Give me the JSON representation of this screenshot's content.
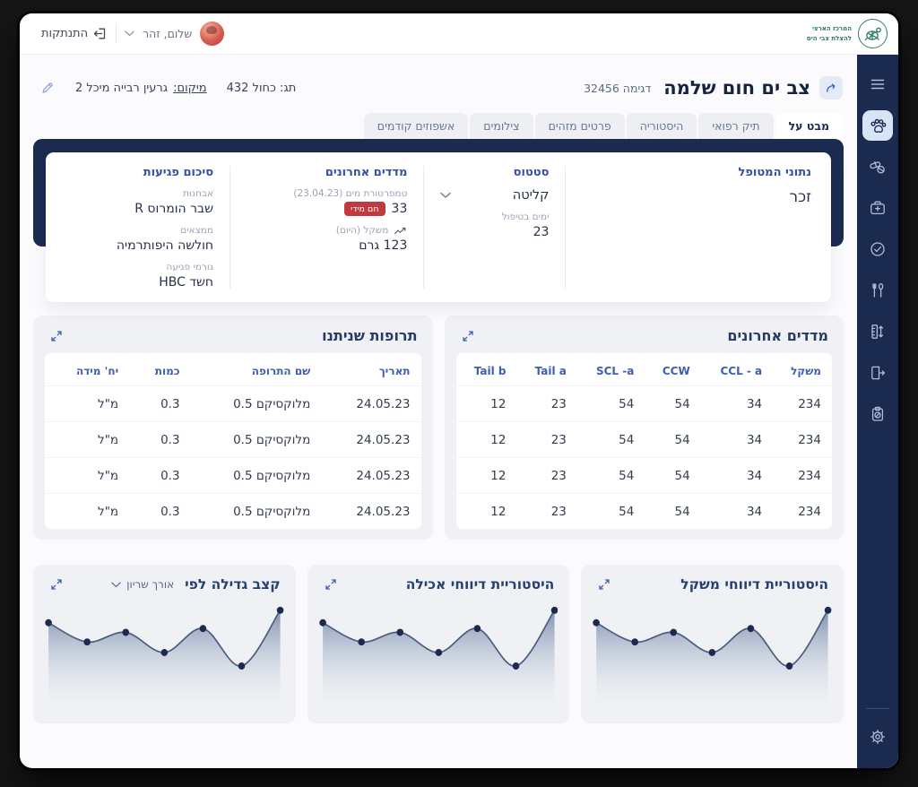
{
  "topbar": {
    "logout_label": "התנתקות",
    "greeting": "שלום, זהר",
    "logo_line1": "המרכז הארצי",
    "logo_line2": "להצלת צבי הים"
  },
  "header": {
    "title": "צב ים חום שלמה",
    "sample_label": "דגימה 32456",
    "tag_label": "תג: כחול 432",
    "location_label": "מיקום:",
    "location_value": "גרעין רבייה מיכל 2"
  },
  "tabs": [
    {
      "label": "מבט על",
      "active": true
    },
    {
      "label": "תיק רפואי",
      "active": false
    },
    {
      "label": "היסטוריה",
      "active": false
    },
    {
      "label": "פרטים מזהים",
      "active": false
    },
    {
      "label": "צילומים",
      "active": false
    },
    {
      "label": "אשפוזים קודמים",
      "active": false
    }
  ],
  "overview": {
    "patient": {
      "header": "נתוני המטופל",
      "sex": "זכר"
    },
    "status": {
      "header": "סטטוס",
      "value": "קליטה",
      "days_label": "ימים בטיפול",
      "days": "23"
    },
    "metrics": {
      "header": "מדדים אחרונים",
      "temp_label": "טמפרטורת מים (23.04.23)",
      "temp_value": "33",
      "temp_badge": "חם מידי",
      "weight_label": "משקל (היום)",
      "weight_value": "123 גרם"
    },
    "injuries": {
      "header": "סיכום פגיעות",
      "diagnosis_label": "אבחנות",
      "diagnosis": "שבר הומרוס R",
      "findings_label": "ממצאים",
      "findings": "חולשה היפותרמיה",
      "causes_label": "גורמי פגיעה",
      "causes": "חשד HBC"
    }
  },
  "tables": {
    "meds": {
      "title": "תרופות שניתנו",
      "headers": [
        "תאריך",
        "שם התרופה",
        "כמות",
        "יח' מידה"
      ],
      "rows": [
        [
          "24.05.23",
          "מלוקסיקם 0.5",
          "0.3",
          "מ\"ל"
        ],
        [
          "24.05.23",
          "מלוקסיקם 0.5",
          "0.3",
          "מ\"ל"
        ],
        [
          "24.05.23",
          "מלוקסיקם 0.5",
          "0.3",
          "מ\"ל"
        ],
        [
          "24.05.23",
          "מלוקסיקם 0.5",
          "0.3",
          "מ\"ל"
        ]
      ]
    },
    "measures": {
      "title": "מדדים אחרונים",
      "headers": [
        "משקל",
        "CCL - a",
        "CCW",
        "SCL -a",
        "Tail a",
        "Tail b"
      ],
      "rows": [
        [
          "234",
          "34",
          "54",
          "54",
          "23",
          "12"
        ],
        [
          "234",
          "34",
          "54",
          "54",
          "23",
          "12"
        ],
        [
          "234",
          "34",
          "54",
          "54",
          "23",
          "12"
        ],
        [
          "234",
          "34",
          "54",
          "54",
          "23",
          "12"
        ]
      ]
    }
  },
  "chart_data": [
    {
      "type": "area",
      "title": "היסטוריית דיווחי משקל",
      "x": [
        1,
        2,
        3,
        4,
        5,
        6,
        7
      ],
      "values": [
        86,
        66,
        76,
        55,
        80,
        41,
        99
      ],
      "axes": "hidden",
      "grid": false,
      "legend": "none"
    },
    {
      "type": "area",
      "title": "היסטוריית דיווחי אכילה",
      "x": [
        1,
        2,
        3,
        4,
        5,
        6,
        7
      ],
      "values": [
        86,
        66,
        76,
        55,
        80,
        41,
        99
      ],
      "axes": "hidden",
      "grid": false,
      "legend": "none"
    },
    {
      "type": "area",
      "title": "קצב גדילה לפי",
      "selector": "אורך שריון",
      "x": [
        1,
        2,
        3,
        4,
        5,
        6,
        7
      ],
      "values": [
        86,
        66,
        76,
        55,
        80,
        41,
        99
      ],
      "axes": "hidden",
      "grid": false,
      "legend": "none"
    }
  ],
  "sidebar": {
    "icons": [
      "menu-icon",
      "paw-icon",
      "pills-icon",
      "medical-kit-icon",
      "check-circle-icon",
      "food-icon",
      "measurements-icon",
      "release-icon",
      "clipboard-icon",
      "settings-icon"
    ],
    "active_icon": "paw-icon"
  },
  "colors": {
    "navy": "#1B2B50",
    "accent_blue": "#3F5EAE",
    "section_header_blue": "#3450A0",
    "badge_red": "#BE3A3F",
    "logo_green": "#2E7D5F",
    "active_icon_bg": "#D6E4F6",
    "chart_line": "#4A5C7E",
    "chart_dot": "#1B2A4E"
  }
}
